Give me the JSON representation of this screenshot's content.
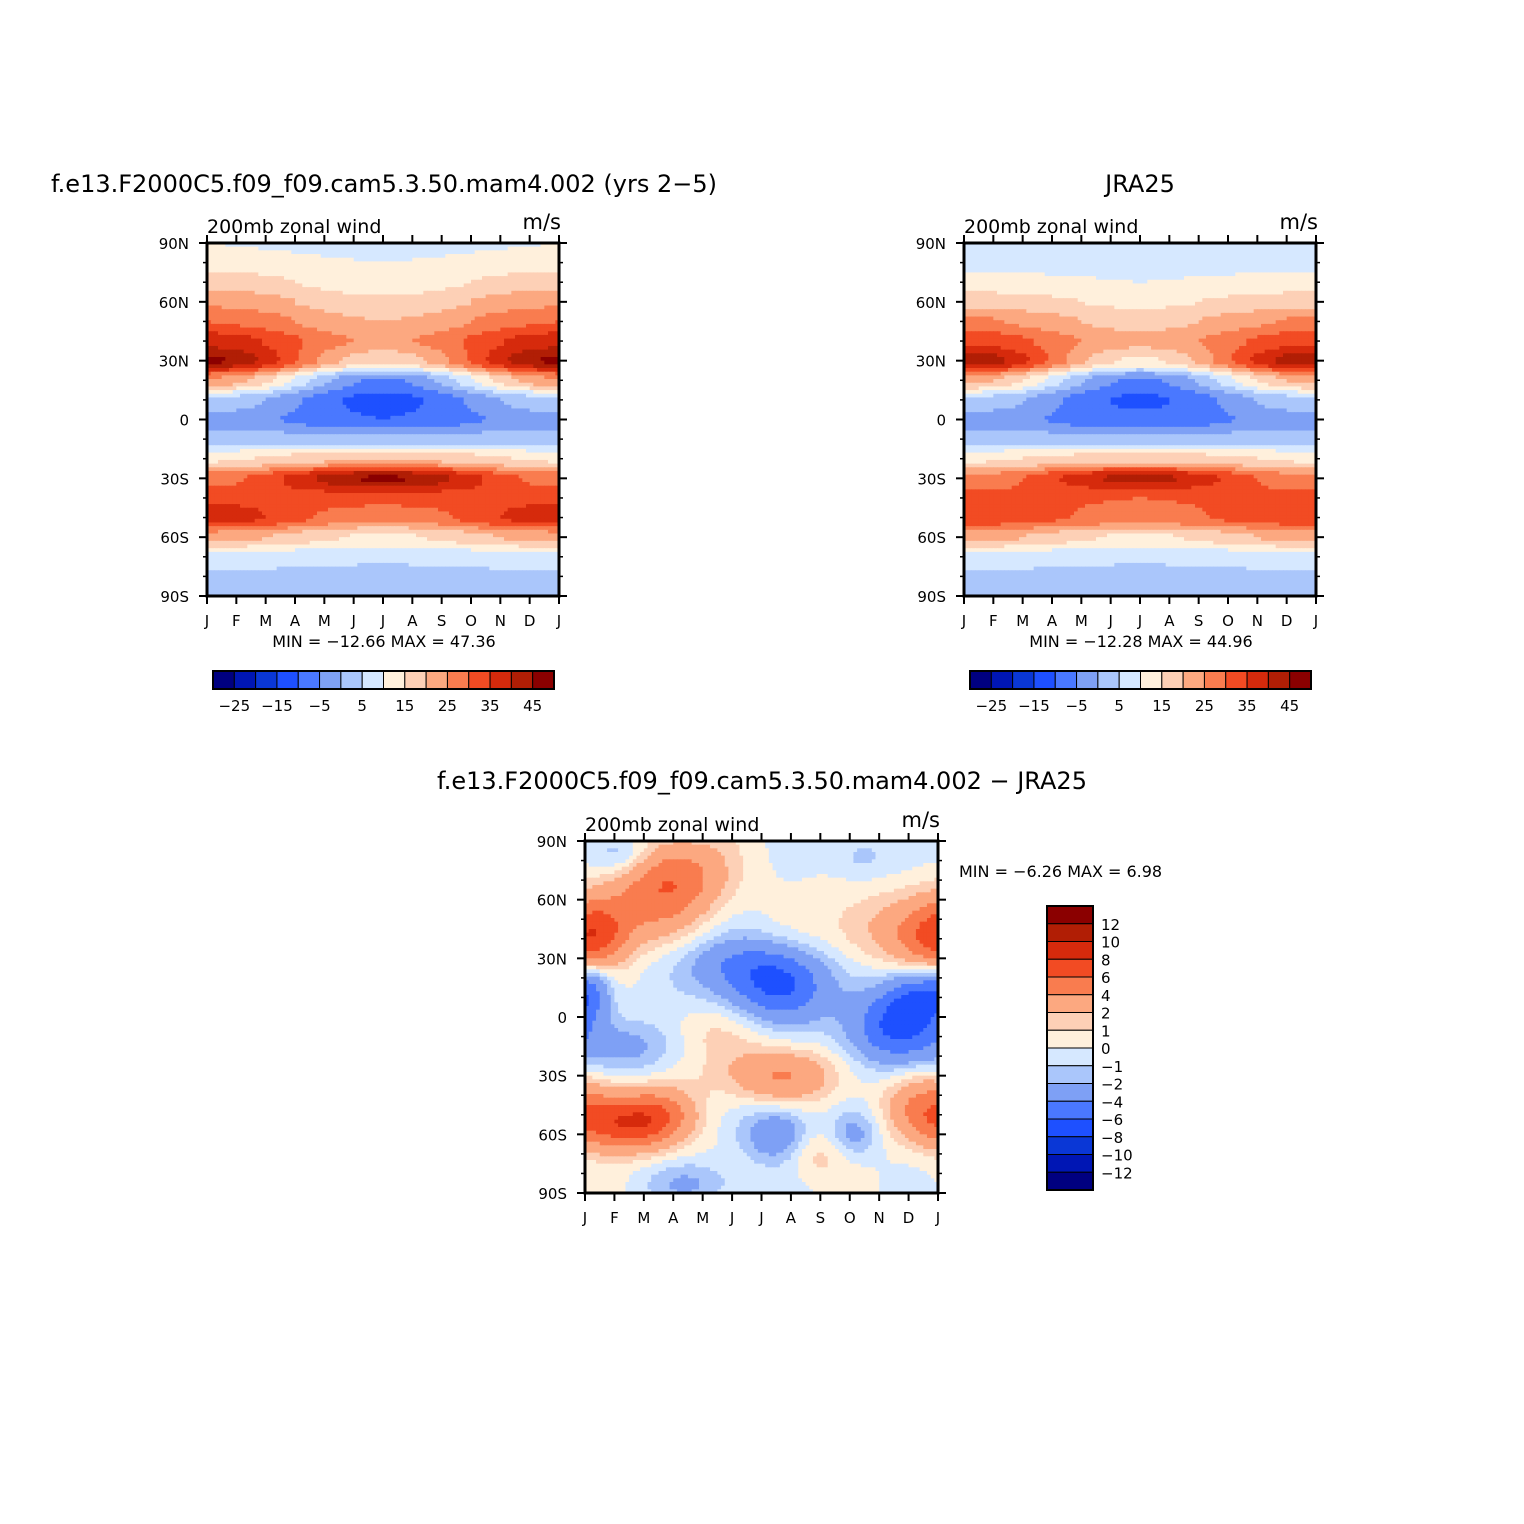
{
  "colors": {
    "left_bar": [
      "#000080",
      "#0016b4",
      "#0a37d6",
      "#1e50ff",
      "#4a78ff",
      "#7ea0f5",
      "#aac6fb",
      "#d6e8ff",
      "#fff0dc",
      "#fdd0b6",
      "#fca880",
      "#f97c4f",
      "#f24b23",
      "#d62a0c",
      "#b11e05",
      "#8b0000"
    ],
    "diff_bar": [
      "#000080",
      "#0016b4",
      "#0a37d6",
      "#1e50ff",
      "#4a78ff",
      "#7ea0f5",
      "#aac6fb",
      "#d6e8ff",
      "#fff0dc",
      "#fdd0b6",
      "#fca880",
      "#f97c4f",
      "#f24b23",
      "#d62a0c",
      "#b11e05",
      "#8b0000"
    ]
  },
  "chart_data": [
    {
      "id": "model",
      "type": "contour",
      "title": "f.e13.F2000C5.f09_f09.cam5.3.50.mam4.002 (yrs 2−5)",
      "subtitle_left": "200mb  zonal  wind",
      "subtitle_right": "m/s",
      "x_ticks": [
        "J",
        "F",
        "M",
        "A",
        "M",
        "J",
        "J",
        "A",
        "S",
        "O",
        "N",
        "D",
        "J"
      ],
      "y_ticks": [
        "90N",
        "60N",
        "30N",
        "0",
        "30S",
        "60S",
        "90S"
      ],
      "ylim": [
        -90,
        90
      ],
      "stats": "MIN =  −12.66  MAX =    47.36",
      "colorbar_labels": [
        "−25",
        "−15",
        "−5",
        "5",
        "15",
        "25",
        "35",
        "45"
      ],
      "profile": {
        "lat": [
          90,
          80,
          70,
          60,
          50,
          40,
          30,
          20,
          10,
          0,
          -10,
          -20,
          -30,
          -40,
          -50,
          -60,
          -70,
          -80,
          -90
        ],
        "jan": [
          10,
          12,
          18,
          24,
          30,
          38,
          46,
          24,
          4,
          -2,
          2,
          14,
          28,
          34,
          38,
          22,
          8,
          4,
          3
        ],
        "jul": [
          8,
          10,
          12,
          16,
          20,
          24,
          16,
          -6,
          -12,
          -10,
          2,
          20,
          46,
          32,
          26,
          14,
          6,
          3,
          2
        ]
      }
    },
    {
      "id": "obs",
      "type": "contour",
      "title": "JRA25",
      "subtitle_left": "200mb  zonal  wind",
      "subtitle_right": "m/s",
      "x_ticks": [
        "J",
        "F",
        "M",
        "A",
        "M",
        "J",
        "J",
        "A",
        "S",
        "O",
        "N",
        "D",
        "J"
      ],
      "y_ticks": [
        "90N",
        "60N",
        "30N",
        "0",
        "30S",
        "60S",
        "90S"
      ],
      "ylim": [
        -90,
        90
      ],
      "stats": "MIN =  −12.28  MAX =    44.96",
      "colorbar_labels": [
        "−25",
        "−15",
        "−5",
        "5",
        "15",
        "25",
        "35",
        "45"
      ],
      "profile": {
        "lat": [
          90,
          80,
          70,
          60,
          50,
          40,
          30,
          20,
          10,
          0,
          -10,
          -20,
          -30,
          -40,
          -50,
          -60,
          -70,
          -80,
          -90
        ],
        "jan": [
          6,
          8,
          12,
          18,
          26,
          34,
          44,
          22,
          4,
          -2,
          2,
          14,
          26,
          32,
          34,
          22,
          8,
          4,
          2
        ],
        "jul": [
          6,
          8,
          10,
          14,
          18,
          22,
          14,
          -6,
          -11,
          -9,
          2,
          18,
          42,
          30,
          28,
          14,
          6,
          3,
          2
        ]
      }
    },
    {
      "id": "diff",
      "type": "contour",
      "title": "f.e13.F2000C5.f09_f09.cam5.3.50.mam4.002 − JRA25",
      "subtitle_left": "200mb  zonal  wind",
      "subtitle_right": "m/s",
      "x_ticks": [
        "J",
        "F",
        "M",
        "A",
        "M",
        "J",
        "J",
        "A",
        "S",
        "O",
        "N",
        "D",
        "J"
      ],
      "y_ticks": [
        "90N",
        "60N",
        "30N",
        "0",
        "30S",
        "60S",
        "90S"
      ],
      "ylim": [
        -90,
        90
      ],
      "stats": "MIN =    −6.26  MAX =     6.98",
      "colorbar_labels": [
        "12",
        "10",
        "8",
        "6",
        "4",
        "2",
        "1",
        "0",
        "−1",
        "−2",
        "−4",
        "−6",
        "−8",
        "−10",
        "−12"
      ]
    }
  ]
}
